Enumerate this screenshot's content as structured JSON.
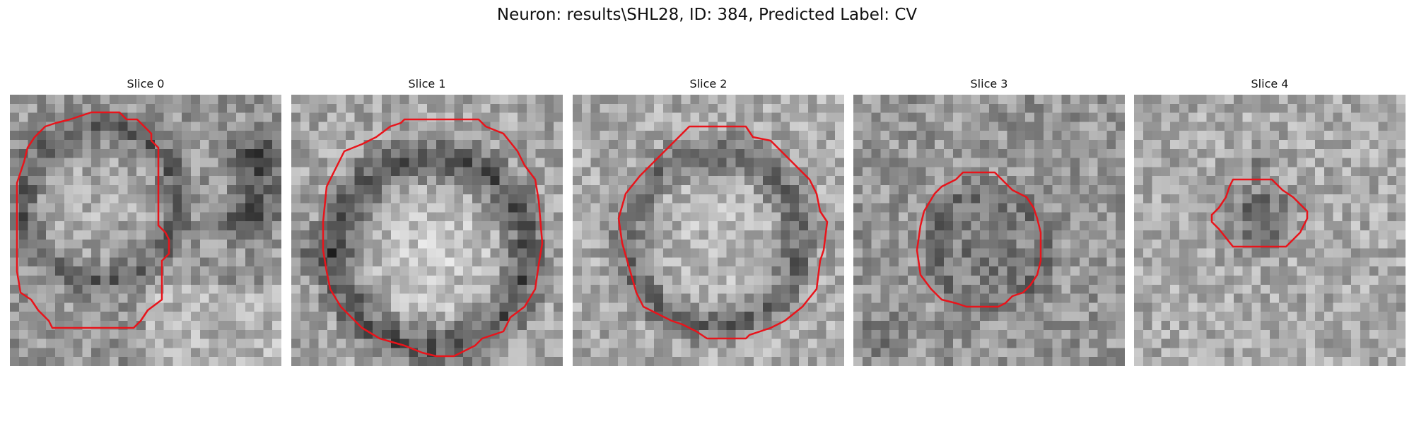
{
  "title": "Neuron: results\\SHL28, ID: 384, Predicted Label: CV",
  "contour_color": "#e8141b",
  "slices": [
    {
      "label": "Slice 0"
    },
    {
      "label": "Slice 1"
    },
    {
      "label": "Slice 2"
    },
    {
      "label": "Slice 3"
    },
    {
      "label": "Slice 4"
    }
  ]
}
